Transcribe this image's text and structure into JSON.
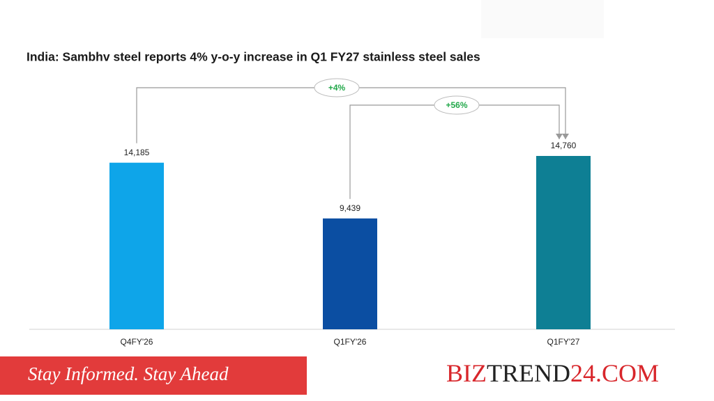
{
  "chart_data": {
    "type": "bar",
    "title": "India: Sambhv steel reports 4% y-o-y increase in Q1 FY27 stainless steel sales",
    "categories": [
      "Q4FY'26",
      "Q1FY'26",
      "Q1FY'27"
    ],
    "values": [
      14185,
      9439,
      14760
    ],
    "value_labels": [
      "14,185",
      "9,439",
      "14,760"
    ],
    "colors": [
      "#0ea5e9",
      "#0b4ea2",
      "#0e7f94"
    ],
    "annotations": [
      "+4%",
      "+56%"
    ]
  },
  "footer": {
    "tagline": "Stay Informed. Stay Ahead",
    "brand": [
      "BIZ",
      "TREND",
      "24.COM"
    ]
  }
}
